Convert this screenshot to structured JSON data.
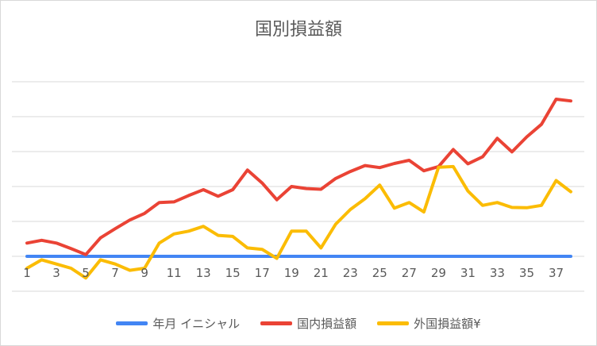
{
  "chart_data": {
    "type": "line",
    "title": "国別損益額",
    "xlabel": "",
    "ylabel": "",
    "x": [
      1,
      2,
      3,
      4,
      5,
      6,
      7,
      8,
      9,
      10,
      11,
      12,
      13,
      14,
      15,
      16,
      17,
      18,
      19,
      20,
      21,
      22,
      23,
      24,
      25,
      26,
      27,
      28,
      29,
      30,
      31,
      32,
      33,
      34,
      35,
      36,
      37,
      38
    ],
    "x_tick_labels": [
      "1",
      "3",
      "5",
      "7",
      "9",
      "11",
      "13",
      "15",
      "17",
      "19",
      "21",
      "23",
      "25",
      "27",
      "29",
      "31",
      "33",
      "35",
      "37"
    ],
    "x_tick_values": [
      1,
      3,
      5,
      7,
      9,
      11,
      13,
      15,
      17,
      19,
      21,
      23,
      25,
      27,
      29,
      31,
      33,
      35,
      37
    ],
    "ylim": [
      -1,
      5.5
    ],
    "gridlines_y": [
      -1,
      0,
      1,
      2,
      3,
      4,
      5
    ],
    "grid": true,
    "legend_position": "bottom",
    "series": [
      {
        "name": "年月 イニシャル",
        "color": "#4285f4",
        "values": [
          0,
          0,
          0,
          0,
          0,
          0,
          0,
          0,
          0,
          0,
          0,
          0,
          0,
          0,
          0,
          0,
          0,
          0,
          0,
          0,
          0,
          0,
          0,
          0,
          0,
          0,
          0,
          0,
          0,
          0,
          0,
          0,
          0,
          0,
          0,
          0,
          0,
          0
        ]
      },
      {
        "name": "国内損益額",
        "color": "#ea4335",
        "values": [
          0.38,
          0.46,
          0.38,
          0.22,
          0.05,
          0.53,
          0.79,
          1.04,
          1.23,
          1.54,
          1.56,
          1.74,
          1.91,
          1.72,
          1.91,
          2.47,
          2.1,
          1.62,
          2.0,
          1.94,
          1.92,
          2.23,
          2.43,
          2.6,
          2.54,
          2.66,
          2.75,
          2.45,
          2.57,
          3.06,
          2.65,
          2.85,
          3.38,
          2.99,
          3.42,
          3.78,
          4.5,
          4.45
        ]
      },
      {
        "name": "外国損益額¥",
        "color": "#fbbc04",
        "values": [
          -0.34,
          -0.1,
          -0.22,
          -0.34,
          -0.62,
          -0.1,
          -0.22,
          -0.4,
          -0.34,
          0.38,
          0.64,
          0.72,
          0.86,
          0.6,
          0.57,
          0.24,
          0.2,
          -0.06,
          0.72,
          0.72,
          0.24,
          0.92,
          1.34,
          1.65,
          2.04,
          1.38,
          1.54,
          1.27,
          2.55,
          2.57,
          1.87,
          1.46,
          1.54,
          1.4,
          1.39,
          1.46,
          2.17,
          1.85
        ]
      }
    ]
  }
}
